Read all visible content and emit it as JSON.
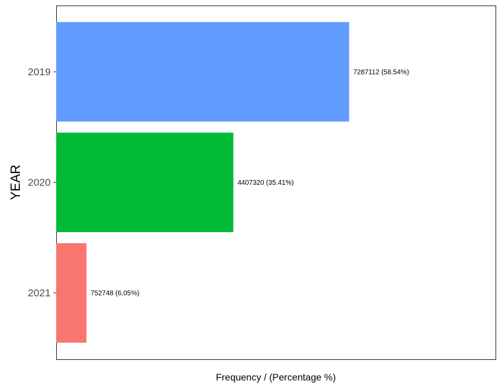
{
  "chart_data": {
    "type": "bar",
    "orientation": "horizontal",
    "xlabel": "Frequency / (Percentage %)",
    "ylabel": "YEAR",
    "categories": [
      "2019",
      "2020",
      "2021"
    ],
    "values": [
      7287112,
      4407320,
      752748
    ],
    "percentages": [
      58.54,
      35.41,
      6.05
    ],
    "data_labels": [
      "7287112 (58.54%)",
      "4407320 (35.41%)",
      "752748 (6.05%)"
    ],
    "colors": [
      "#619CFF",
      "#00BA38",
      "#F8766D"
    ],
    "xlim": [
      0,
      10930000
    ],
    "x_ticks_shown": false,
    "grid": false,
    "legend": "none"
  }
}
